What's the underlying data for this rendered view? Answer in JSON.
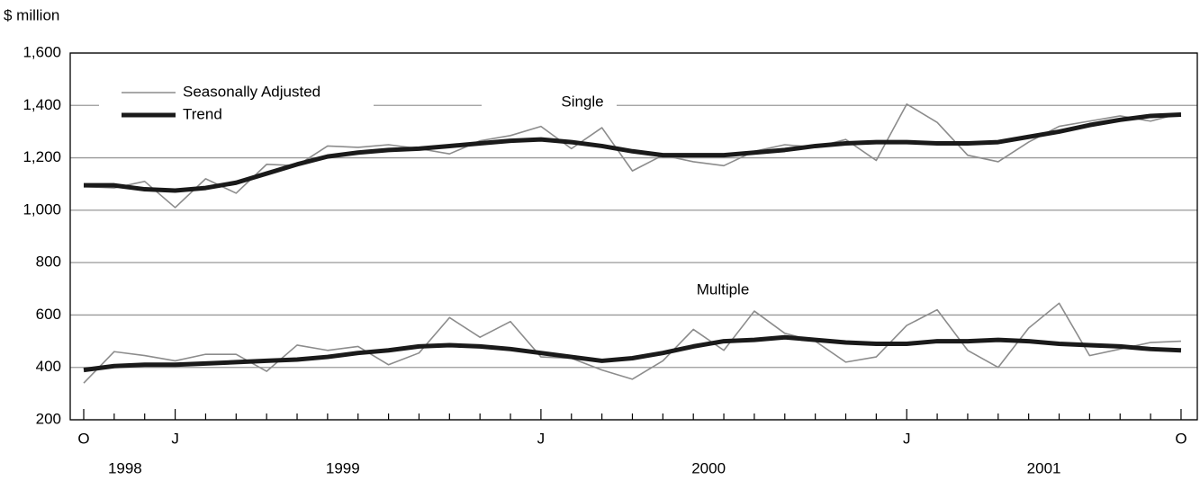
{
  "chart_data": {
    "type": "line",
    "ylabel": "$ million",
    "categories": [
      "O",
      null,
      null,
      "J",
      null,
      null,
      null,
      null,
      null,
      null,
      null,
      null,
      null,
      null,
      null,
      "J",
      null,
      null,
      null,
      null,
      null,
      null,
      null,
      null,
      null,
      null,
      null,
      "J",
      null,
      null,
      null,
      null,
      null,
      null,
      null,
      null,
      "O"
    ],
    "years": [
      "1998",
      "1999",
      "2000",
      "2001"
    ],
    "annotations": [
      "Single",
      "Multiple"
    ],
    "ylim": [
      200,
      1600
    ],
    "yticks": [
      200,
      400,
      600,
      800,
      {
        "value": 1000,
        "label": "1,000"
      },
      {
        "value": 1200,
        "label": "1,200"
      },
      {
        "value": 1400,
        "label": "1,400"
      },
      {
        "value": 1600,
        "label": "1,600"
      }
    ],
    "grid": true,
    "series": [
      {
        "name": "Seasonally Adjusted",
        "color": "#8c8c8c",
        "width": 1.6,
        "values": [
          1090,
          1085,
          1110,
          1010,
          1120,
          1065,
          1175,
          1170,
          1245,
          1240,
          1250,
          1235,
          1215,
          1265,
          1285,
          1320,
          1235,
          1315,
          1150,
          1210,
          1185,
          1170,
          1225,
          1250,
          1240,
          1270,
          1190,
          1405,
          1335,
          1210,
          1185,
          1260,
          1320,
          1340,
          1360,
          1340,
          1370
        ]
      },
      {
        "name": "Trend",
        "color": "#1a1a1a",
        "width": 5,
        "values": [
          1095,
          1095,
          1080,
          1075,
          1085,
          1105,
          1140,
          1175,
          1205,
          1220,
          1230,
          1235,
          1245,
          1255,
          1265,
          1270,
          1260,
          1245,
          1225,
          1210,
          1210,
          1210,
          1220,
          1230,
          1245,
          1255,
          1260,
          1260,
          1255,
          1255,
          1260,
          1280,
          1300,
          1325,
          1345,
          1360,
          1365
        ]
      },
      {
        "name": "Seasonally Adjusted",
        "color": "#8c8c8c",
        "width": 1.6,
        "values": [
          340,
          460,
          445,
          425,
          450,
          450,
          385,
          485,
          465,
          480,
          410,
          455,
          590,
          515,
          575,
          440,
          435,
          390,
          355,
          425,
          545,
          465,
          615,
          530,
          500,
          420,
          440,
          560,
          620,
          465,
          400,
          550,
          645,
          445,
          470,
          495,
          500
        ]
      },
      {
        "name": "Trend",
        "color": "#1a1a1a",
        "width": 5,
        "values": [
          390,
          405,
          410,
          410,
          415,
          420,
          425,
          430,
          440,
          455,
          465,
          480,
          485,
          480,
          470,
          455,
          440,
          425,
          435,
          455,
          480,
          500,
          505,
          515,
          505,
          495,
          490,
          490,
          500,
          500,
          505,
          500,
          490,
          485,
          480,
          470,
          465
        ]
      }
    ]
  }
}
